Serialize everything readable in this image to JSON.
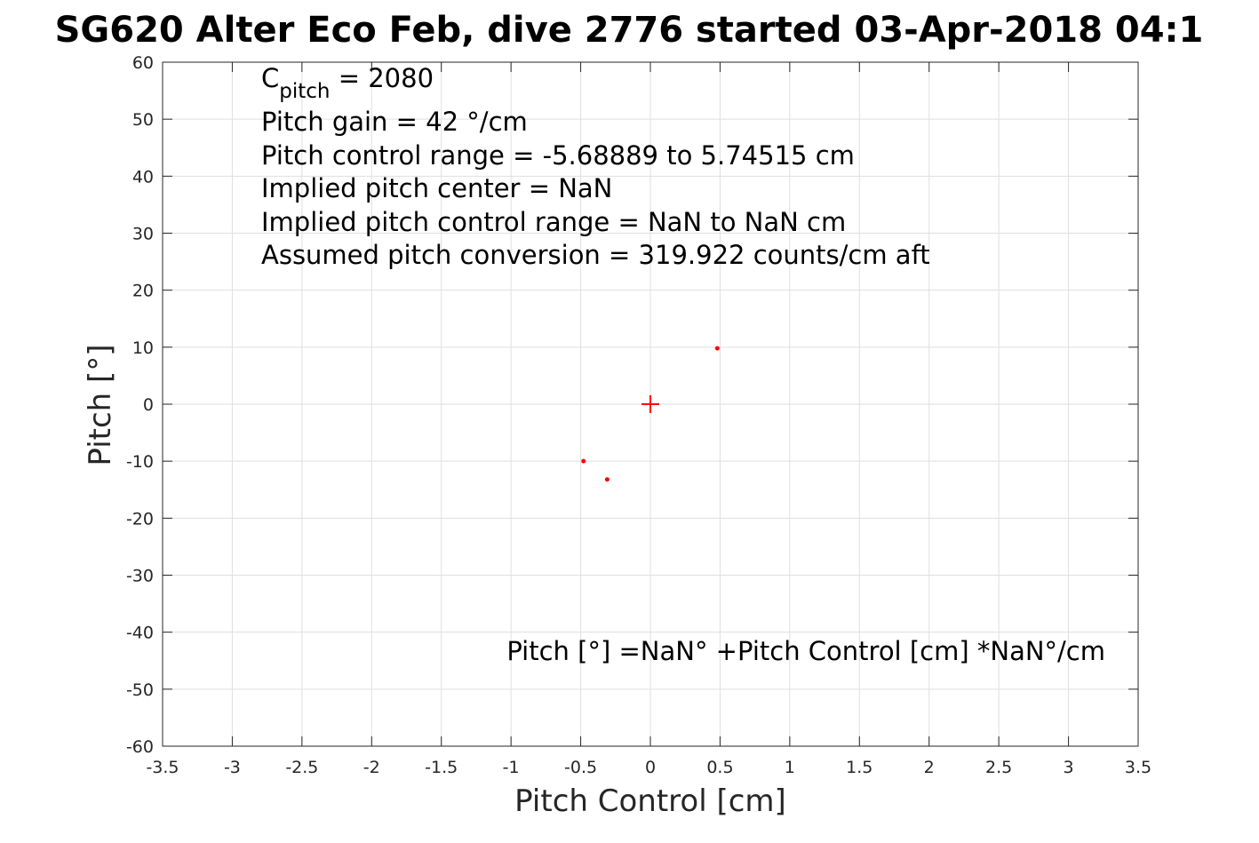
{
  "chart_data": {
    "type": "scatter",
    "title": "SG620 Alter Eco Feb, dive 2776 started 03-Apr-2018 04:1",
    "xlabel": "Pitch Control [cm]",
    "ylabel": "Pitch [°]",
    "xlim": [
      -3.5,
      3.5
    ],
    "ylim": [
      -60,
      60
    ],
    "x_ticks": [
      -3.5,
      -3,
      -2.5,
      -2,
      -1.5,
      -1,
      -0.5,
      0,
      0.5,
      1,
      1.5,
      2,
      2.5,
      3,
      3.5
    ],
    "x_tick_labels": [
      "-3.5",
      "-3",
      "-2.5",
      "-2",
      "-1.5",
      "-1",
      "-0.5",
      "0",
      "0.5",
      "1",
      "1.5",
      "2",
      "2.5",
      "3",
      "3.5"
    ],
    "y_ticks": [
      -60,
      -50,
      -40,
      -30,
      -20,
      -10,
      0,
      10,
      20,
      30,
      40,
      50,
      60
    ],
    "y_tick_labels": [
      "-60",
      "-50",
      "-40",
      "-30",
      "-20",
      "-10",
      "0",
      "10",
      "20",
      "30",
      "40",
      "50",
      "60"
    ],
    "grid": true,
    "series": [
      {
        "marker": "dot",
        "color": "#ff0000",
        "points": [
          {
            "x": 0.48,
            "y": 9.8
          },
          {
            "x": -0.48,
            "y": -10
          },
          {
            "x": -0.31,
            "y": -13.2
          }
        ]
      },
      {
        "marker": "plus",
        "color": "#ff0000",
        "points": [
          {
            "x": 0,
            "y": 0
          }
        ]
      }
    ],
    "annotations": {
      "c_pitch_symbol": "C",
      "c_pitch_subscript": "pitch",
      "c_pitch_value": " = 2080",
      "lines": [
        "Pitch gain = 42 °/cm",
        "Pitch control range = -5.68889 to 5.74515 cm",
        "Implied pitch center = NaN",
        "Implied pitch control range = NaN to NaN cm",
        "Assumed pitch conversion = 319.922 counts/cm aft"
      ],
      "fit_equation": "Pitch [°] =NaN° +Pitch Control [cm] *NaN°/cm"
    }
  }
}
